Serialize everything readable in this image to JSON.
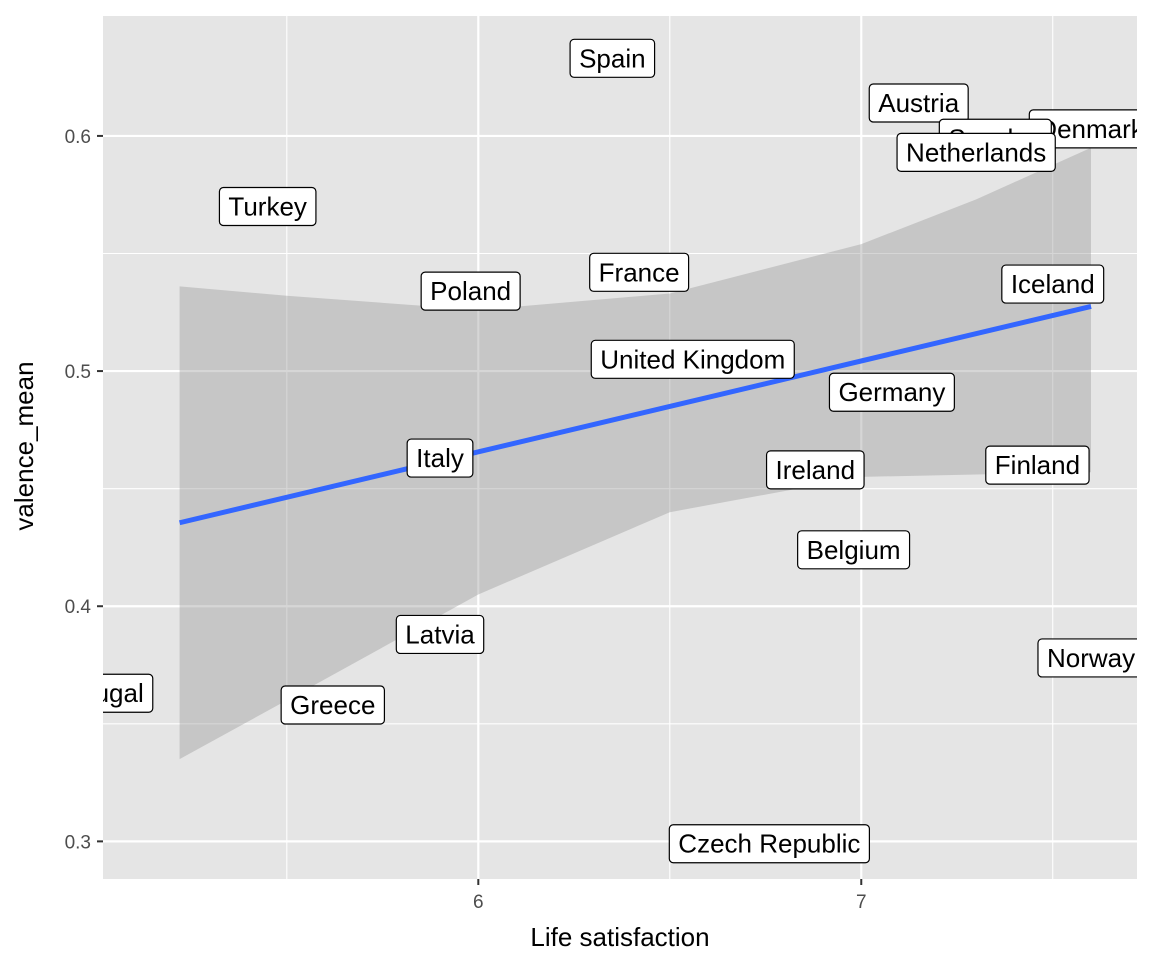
{
  "chart_data": {
    "type": "scatter",
    "title": "",
    "xlabel": "Life satisfaction",
    "ylabel": "valence_mean",
    "xlim": [
      5.02,
      7.72
    ],
    "ylim": [
      0.284,
      0.651
    ],
    "x_ticks": [
      6,
      7
    ],
    "x_tick_labels": [
      "6",
      "7"
    ],
    "y_ticks": [
      0.3,
      0.4,
      0.5,
      0.6
    ],
    "y_tick_labels": [
      "0.3",
      "0.4",
      "0.5",
      "0.6"
    ],
    "grid": true,
    "legend": "none",
    "points": [
      {
        "label": "Spain",
        "x": 6.35,
        "y": 0.633
      },
      {
        "label": "Austria",
        "x": 7.15,
        "y": 0.614
      },
      {
        "label": "Denmark",
        "x": 7.6,
        "y": 0.603
      },
      {
        "label": "Sweden",
        "x": 7.35,
        "y": 0.599
      },
      {
        "label": "Netherlands",
        "x": 7.3,
        "y": 0.593
      },
      {
        "label": "Turkey",
        "x": 5.45,
        "y": 0.57
      },
      {
        "label": "France",
        "x": 6.42,
        "y": 0.542
      },
      {
        "label": "Poland",
        "x": 5.98,
        "y": 0.534
      },
      {
        "label": "Iceland",
        "x": 7.5,
        "y": 0.537
      },
      {
        "label": "United Kingdom",
        "x": 6.56,
        "y": 0.505
      },
      {
        "label": "Germany",
        "x": 7.08,
        "y": 0.491
      },
      {
        "label": "Italy",
        "x": 5.9,
        "y": 0.463
      },
      {
        "label": "Ireland",
        "x": 6.88,
        "y": 0.458
      },
      {
        "label": "Finland",
        "x": 7.46,
        "y": 0.46
      },
      {
        "label": "Belgium",
        "x": 6.98,
        "y": 0.424
      },
      {
        "label": "Latvia",
        "x": 5.9,
        "y": 0.388
      },
      {
        "label": "Norway",
        "x": 7.6,
        "y": 0.378
      },
      {
        "label": "Portugal",
        "x": 5.0,
        "y": 0.363
      },
      {
        "label": "Greece",
        "x": 5.62,
        "y": 0.358
      },
      {
        "label": "Czech Republic",
        "x": 6.76,
        "y": 0.299
      }
    ],
    "trend_line": {
      "method": "linear",
      "color": "#3366FF",
      "x": [
        5.22,
        7.6
      ],
      "y": [
        0.4355,
        0.5275
      ]
    },
    "confidence_band": {
      "color": "#999999",
      "x": [
        5.22,
        5.5,
        6.0,
        6.5,
        7.0,
        7.3,
        7.6
      ],
      "lower": [
        0.335,
        0.36,
        0.405,
        0.44,
        0.455,
        0.456,
        0.457
      ],
      "upper": [
        0.536,
        0.532,
        0.526,
        0.533,
        0.554,
        0.573,
        0.595
      ]
    }
  },
  "colors": {
    "panel_background": "#E5E5E5",
    "grid_major": "#FFFFFF",
    "label_fill": "#FFFFFF",
    "label_border": "#000000"
  }
}
